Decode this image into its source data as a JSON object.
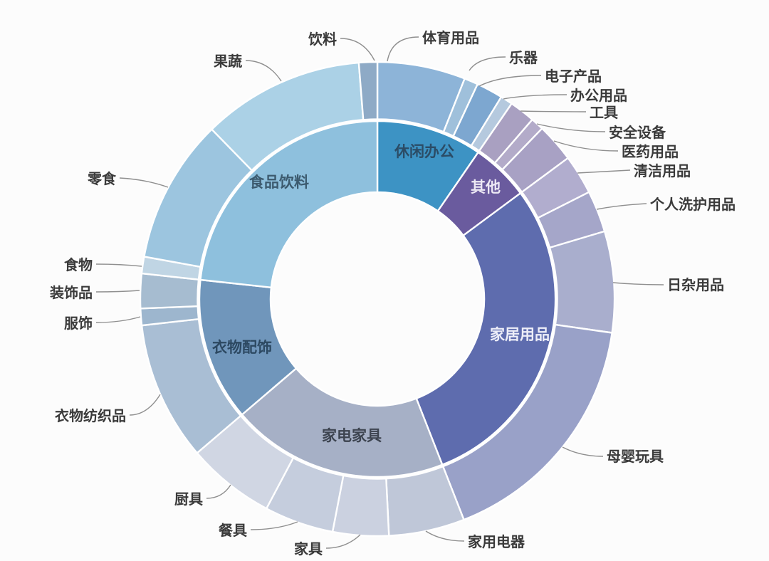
{
  "page": {
    "background": "#fcfcfc"
  },
  "chart_data": {
    "type": "sunburst",
    "title": "",
    "subtitle": "",
    "legend": {
      "visible": false
    },
    "angle_unit": "degrees_clockwise_from_12_oclock",
    "style": {
      "leader_line_color": "#8f8f8f",
      "callout_label_color": "#3a3a3a",
      "background": "#fcfcfc"
    },
    "rings": {
      "inner": [
        {
          "id": "leisure-office",
          "label": "休闲办公",
          "start_deg": 0,
          "end_deg": 34.5,
          "value_pct": 9.6,
          "color": "#3d93c4",
          "label_color": "#2b4c66"
        },
        {
          "id": "others",
          "label": "其他",
          "start_deg": 34.5,
          "end_deg": 53.5,
          "value_pct": 5.3,
          "color": "#6a5b9e",
          "label_color": "#ece8f4"
        },
        {
          "id": "home-goods",
          "label": "家居用品",
          "start_deg": 53.5,
          "end_deg": 158.6,
          "value_pct": 29.2,
          "color": "#5e6cae",
          "label_color": "#edeef8"
        },
        {
          "id": "appliances-furniture",
          "label": "家电家具",
          "start_deg": 158.6,
          "end_deg": 229.5,
          "value_pct": 19.7,
          "color": "#a6b0c6",
          "label_color": "#3d4450"
        },
        {
          "id": "clothing-accessories",
          "label": "衣物配饰",
          "start_deg": 229.5,
          "end_deg": 276.2,
          "value_pct": 13.0,
          "color": "#7096bb",
          "label_color": "#2c4861"
        },
        {
          "id": "food-beverage",
          "label": "食品饮料",
          "start_deg": 276.2,
          "end_deg": 360,
          "value_pct": 23.3,
          "color": "#8ec0dd",
          "label_color": "#3c5a6e"
        }
      ],
      "outer": [
        {
          "id": "sports-goods",
          "label": "体育用品",
          "parent": "休闲办公",
          "start_deg": 0,
          "end_deg": 21.6,
          "value_pct": 6.0,
          "color": "#8db4d8"
        },
        {
          "id": "musical-instruments",
          "label": "乐器",
          "parent": "休闲办公",
          "start_deg": 21.6,
          "end_deg": 25.0,
          "value_pct": 0.9,
          "color": "#9fc0db"
        },
        {
          "id": "electronics",
          "label": "电子产品",
          "parent": "休闲办公",
          "start_deg": 25.0,
          "end_deg": 31.5,
          "value_pct": 1.8,
          "color": "#7da7d0"
        },
        {
          "id": "office-supplies",
          "label": "办公用品",
          "parent": "休闲办公",
          "start_deg": 31.5,
          "end_deg": 34.5,
          "value_pct": 0.8,
          "color": "#b5c9de"
        },
        {
          "id": "tools",
          "label": "工具",
          "parent": "其他",
          "start_deg": 34.5,
          "end_deg": 40.8,
          "value_pct": 1.8,
          "color": "#a9a0c1"
        },
        {
          "id": "safety-equipment",
          "label": "安全设备",
          "parent": "其他",
          "start_deg": 40.8,
          "end_deg": 44.0,
          "value_pct": 0.9,
          "color": "#b3abc9"
        },
        {
          "id": "medical-supplies",
          "label": "医药用品",
          "parent": "其他",
          "start_deg": 44.0,
          "end_deg": 53.5,
          "value_pct": 2.6,
          "color": "#a8a1c4"
        },
        {
          "id": "cleaning-supplies",
          "label": "清洁用品",
          "parent": "家居用品",
          "start_deg": 53.5,
          "end_deg": 63.2,
          "value_pct": 2.7,
          "color": "#b1adce"
        },
        {
          "id": "personal-care",
          "label": "个人洗护用品",
          "parent": "家居用品",
          "start_deg": 63.2,
          "end_deg": 73.4,
          "value_pct": 2.8,
          "color": "#a5a6c9"
        },
        {
          "id": "daily-sundries",
          "label": "日杂用品",
          "parent": "家居用品",
          "start_deg": 73.4,
          "end_deg": 98.2,
          "value_pct": 6.9,
          "color": "#a9aecd"
        },
        {
          "id": "mother-baby-toys",
          "label": "母婴玩具",
          "parent": "家居用品",
          "start_deg": 98.2,
          "end_deg": 158.6,
          "value_pct": 16.8,
          "color": "#99a1c8"
        },
        {
          "id": "household-appliances",
          "label": "家用电器",
          "parent": "家电家具",
          "start_deg": 158.6,
          "end_deg": 177.2,
          "value_pct": 5.2,
          "color": "#bfc7d8"
        },
        {
          "id": "furniture",
          "label": "家具",
          "parent": "家电家具",
          "start_deg": 177.2,
          "end_deg": 190.9,
          "value_pct": 3.8,
          "color": "#cbd1e0"
        },
        {
          "id": "tableware",
          "label": "餐具",
          "parent": "家电家具",
          "start_deg": 190.9,
          "end_deg": 207.9,
          "value_pct": 4.7,
          "color": "#c5cddd"
        },
        {
          "id": "kitchenware",
          "label": "厨具",
          "parent": "家电家具",
          "start_deg": 207.9,
          "end_deg": 229.5,
          "value_pct": 6.0,
          "color": "#d0d6e3"
        },
        {
          "id": "clothing-textiles",
          "label": "衣物纺织品",
          "parent": "衣物配饰",
          "start_deg": 229.5,
          "end_deg": 263.6,
          "value_pct": 9.5,
          "color": "#a9bed4"
        },
        {
          "id": "apparel",
          "label": "服饰",
          "parent": "衣物配饰",
          "start_deg": 263.6,
          "end_deg": 267.7,
          "value_pct": 1.1,
          "color": "#9db6ce"
        },
        {
          "id": "decorations",
          "label": "装饰品",
          "parent": "衣物配饰",
          "start_deg": 267.7,
          "end_deg": 276.2,
          "value_pct": 2.4,
          "color": "#a6bcd0"
        },
        {
          "id": "food",
          "label": "食物",
          "parent": "食品饮料",
          "start_deg": 276.2,
          "end_deg": 280.3,
          "value_pct": 1.1,
          "color": "#c0d5e4"
        },
        {
          "id": "snacks",
          "label": "零食",
          "parent": "食品饮料",
          "start_deg": 280.3,
          "end_deg": 315.7,
          "value_pct": 9.8,
          "color": "#9cc5df"
        },
        {
          "id": "fruits-vegetables",
          "label": "果蔬",
          "parent": "食品饮料",
          "start_deg": 315.7,
          "end_deg": 355.5,
          "value_pct": 11.1,
          "color": "#abd1e6"
        },
        {
          "id": "beverages",
          "label": "饮料",
          "parent": "食品饮料",
          "start_deg": 355.5,
          "end_deg": 360,
          "value_pct": 1.2,
          "color": "#8eaac6"
        }
      ]
    }
  }
}
